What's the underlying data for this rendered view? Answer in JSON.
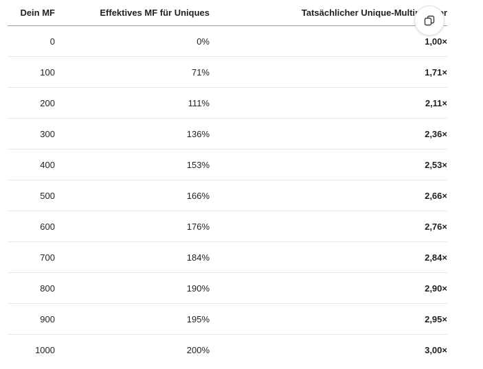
{
  "table": {
    "headers": [
      "Dein MF",
      "Effektives MF für Uniques",
      "Tatsächlicher Unique-Multiplikator"
    ],
    "rows": [
      [
        "0",
        "0%",
        "1,00×"
      ],
      [
        "100",
        "71%",
        "1,71×"
      ],
      [
        "200",
        "111%",
        "2,11×"
      ],
      [
        "300",
        "136%",
        "2,36×"
      ],
      [
        "400",
        "153%",
        "2,53×"
      ],
      [
        "500",
        "166%",
        "2,66×"
      ],
      [
        "600",
        "176%",
        "2,76×"
      ],
      [
        "700",
        "184%",
        "2,84×"
      ],
      [
        "800",
        "190%",
        "2,90×"
      ],
      [
        "900",
        "195%",
        "2,95×"
      ],
      [
        "1000",
        "200%",
        "3,00×"
      ]
    ]
  },
  "copy_button": {
    "icon": "copy-icon"
  }
}
